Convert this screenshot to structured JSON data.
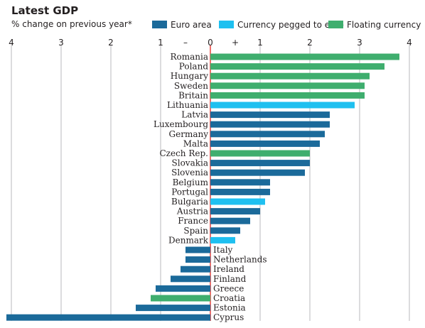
{
  "title": "Latest GDP",
  "subtitle": "% change on previous year*",
  "legend": [
    {
      "label": "Euro area",
      "color": "#1b6a9a"
    },
    {
      "label": "Currency pegged to euro",
      "color": "#1fc0f0"
    },
    {
      "label": "Floating currency",
      "color": "#3fae6e"
    }
  ],
  "chart_data": {
    "type": "bar",
    "orientation": "horizontal",
    "title": "Latest GDP",
    "subtitle": "% change on previous year*",
    "xlim": [
      -4,
      4
    ],
    "x_ticks": [
      {
        "value": -4,
        "label": "4"
      },
      {
        "value": -3,
        "label": "3"
      },
      {
        "value": -2,
        "label": "2"
      },
      {
        "value": -1,
        "label": "1"
      },
      {
        "value": -0.5,
        "label": "–"
      },
      {
        "value": 0,
        "label": "0"
      },
      {
        "value": 0.5,
        "label": "+"
      },
      {
        "value": 1,
        "label": "1"
      },
      {
        "value": 2,
        "label": "2"
      },
      {
        "value": 3,
        "label": "3"
      },
      {
        "value": 4,
        "label": "4"
      }
    ],
    "grid": true,
    "legend_position": "top-right",
    "series_colors": {
      "euro": "#1b6a9a",
      "pegged": "#1fc0f0",
      "floating": "#3fae6e"
    },
    "series_names": {
      "euro": "Euro area",
      "pegged": "Currency pegged to euro",
      "floating": "Floating currency"
    },
    "categories": [
      "Romania",
      "Poland",
      "Hungary",
      "Sweden",
      "Britain",
      "Lithuania",
      "Latvia",
      "Luxembourg",
      "Germany",
      "Malta",
      "Czech Rep.",
      "Slovakia",
      "Slovenia",
      "Belgium",
      "Portugal",
      "Bulgaria",
      "Austria",
      "France",
      "Spain",
      "Denmark",
      "Italy",
      "Netherlands",
      "Ireland",
      "Finland",
      "Greece",
      "Croatia",
      "Estonia",
      "Cyprus"
    ],
    "values": [
      3.8,
      3.5,
      3.2,
      3.1,
      3.1,
      2.9,
      2.4,
      2.4,
      2.3,
      2.2,
      2.0,
      2.0,
      1.9,
      1.2,
      1.2,
      1.1,
      1.0,
      0.8,
      0.6,
      0.5,
      -0.5,
      -0.5,
      -0.6,
      -0.8,
      -1.1,
      -1.2,
      -1.5,
      -4.1
    ],
    "groups": [
      "floating",
      "floating",
      "floating",
      "floating",
      "floating",
      "pegged",
      "euro",
      "euro",
      "euro",
      "euro",
      "floating",
      "euro",
      "euro",
      "euro",
      "euro",
      "pegged",
      "euro",
      "euro",
      "euro",
      "pegged",
      "euro",
      "euro",
      "euro",
      "euro",
      "euro",
      "floating",
      "euro",
      "euro"
    ]
  }
}
